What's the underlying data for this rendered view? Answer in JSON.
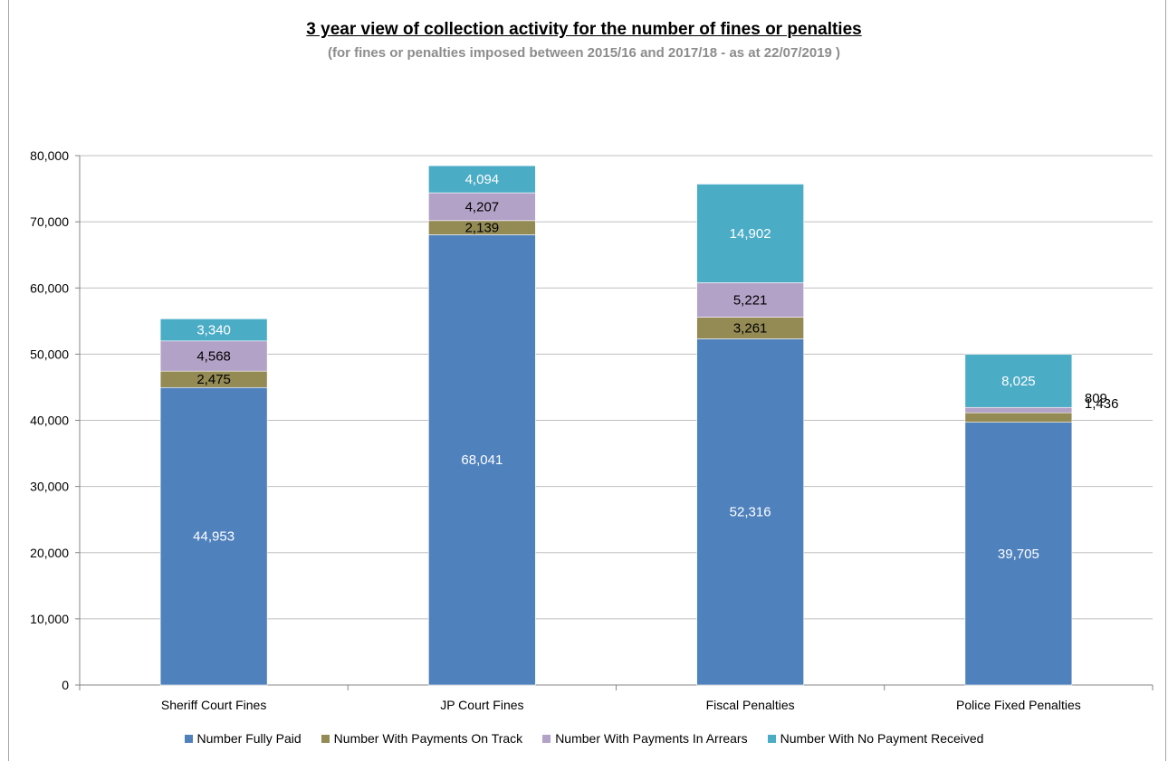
{
  "chart_data": {
    "type": "bar",
    "stacked": true,
    "title": "3 year view of collection activity for the number of fines or penalties",
    "subtitle": "(for fines or penalties imposed between 2015/16 and 2017/18 - as at  22/07/2019 )",
    "categories": [
      "Sheriff Court Fines",
      "JP Court Fines",
      "Fiscal Penalties",
      "Police Fixed Penalties"
    ],
    "series": [
      {
        "name": "Number Fully Paid",
        "color": "#4f81bd",
        "label_color": "#ffffff",
        "values": [
          44953,
          68041,
          52316,
          39705
        ],
        "labels": [
          "44,953",
          "68,041",
          "52,316",
          "39,705"
        ]
      },
      {
        "name": "Number With Payments On Track",
        "color": "#948a54",
        "label_color": "#000000",
        "values": [
          2475,
          2139,
          3261,
          1436
        ],
        "labels": [
          "2,475",
          "2,139",
          "3,261",
          "1,436"
        ]
      },
      {
        "name": "Number With Payments In Arrears",
        "color": "#b3a2c7",
        "label_color": "#000000",
        "values": [
          4568,
          4207,
          5221,
          809
        ],
        "labels": [
          "4,568",
          "4,207",
          "5,221",
          "809"
        ]
      },
      {
        "name": "Number With No Payment Received",
        "color": "#4bacc6",
        "label_color": "#ffffff",
        "values": [
          3340,
          4094,
          14902,
          8025
        ],
        "labels": [
          "3,340",
          "4,094",
          "14,902",
          "8,025"
        ]
      }
    ],
    "ylim": [
      0,
      80000
    ],
    "yticks": [
      0,
      10000,
      20000,
      30000,
      40000,
      50000,
      60000,
      70000,
      80000
    ],
    "ytick_labels": [
      "0",
      "10,000",
      "20,000",
      "30,000",
      "40,000",
      "50,000",
      "60,000",
      "70,000",
      "80,000"
    ],
    "grid": true,
    "legend": "bottom"
  }
}
